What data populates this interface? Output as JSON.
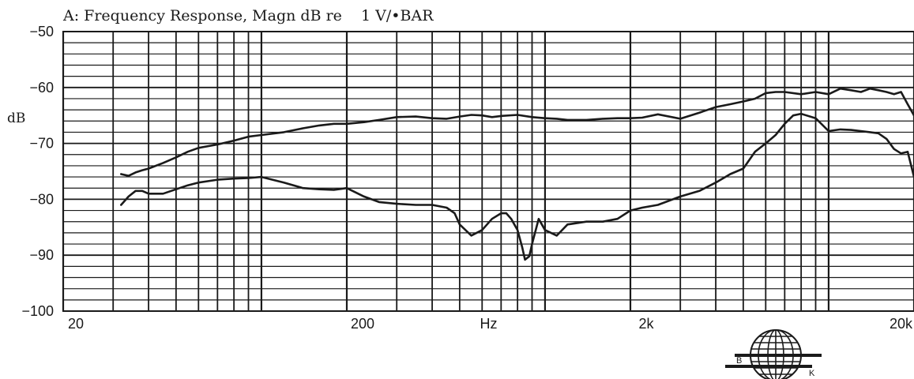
{
  "chart_data": {
    "type": "line",
    "title": "A: Frequency Response, Magn dB re    1 V/•BAR",
    "xlabel": "Hz",
    "ylabel": "dB",
    "xscale": "log",
    "xlim": [
      20,
      20000
    ],
    "ylim": [
      -100,
      -50
    ],
    "x_ticks": [
      20,
      200,
      2000,
      20000
    ],
    "x_tick_labels": [
      "20",
      "200",
      "2k",
      "20k"
    ],
    "y_ticks": [
      -50,
      -60,
      -70,
      -80,
      -90,
      -100
    ],
    "y_tick_labels": [
      "−50",
      "−60",
      "−70",
      "−80",
      "−90",
      "−100"
    ],
    "grid": true,
    "line_color": "#1a1a1a",
    "series": [
      {
        "x": [
          32,
          34,
          36,
          38,
          40,
          45,
          50,
          55,
          60,
          70,
          80,
          90,
          100,
          120,
          140,
          160,
          180,
          200,
          230,
          260,
          300,
          350,
          400,
          450,
          500,
          550,
          600,
          650,
          700,
          800,
          900,
          1000,
          1100,
          1200,
          1400,
          1600,
          1800,
          2000,
          2200,
          2500,
          3000,
          3500,
          4000,
          4500,
          5000,
          5500,
          6000,
          6500,
          7000,
          8000,
          9000,
          10000,
          11000,
          12000,
          13000,
          14000,
          15000,
          16000,
          17000,
          18000,
          19000,
          20000
        ],
        "y": [
          -75.5,
          -75.8,
          -75.2,
          -74.8,
          -74.5,
          -73.5,
          -72.5,
          -71.5,
          -70.8,
          -70.2,
          -69.5,
          -68.8,
          -68.5,
          -68,
          -67.3,
          -66.8,
          -66.5,
          -66.5,
          -66.2,
          -65.8,
          -65.3,
          -65.2,
          -65.5,
          -65.6,
          -65.2,
          -64.9,
          -65,
          -65.3,
          -65.1,
          -64.9,
          -65.3,
          -65.5,
          -65.6,
          -65.8,
          -65.8,
          -65.6,
          -65.5,
          -65.5,
          -65.4,
          -64.8,
          -65.6,
          -64.5,
          -63.5,
          -63,
          -62.5,
          -62,
          -61,
          -60.8,
          -60.8,
          -61.2,
          -60.8,
          -61.2,
          -60.2,
          -60.5,
          -60.8,
          -60.2,
          -60.5,
          -60.8,
          -61.2,
          -60.8,
          -63,
          -65
        ]
      },
      {
        "x": [
          32,
          34,
          36,
          38,
          40,
          45,
          50,
          55,
          60,
          70,
          80,
          90,
          100,
          120,
          140,
          160,
          180,
          200,
          230,
          260,
          300,
          350,
          400,
          450,
          480,
          500,
          550,
          600,
          650,
          700,
          730,
          760,
          800,
          830,
          850,
          880,
          900,
          950,
          1000,
          1100,
          1200,
          1400,
          1600,
          1800,
          2000,
          2200,
          2500,
          3000,
          3500,
          4000,
          4500,
          5000,
          5500,
          6000,
          6500,
          7000,
          7500,
          8000,
          9000,
          10000,
          11000,
          12000,
          13000,
          14000,
          15000,
          16000,
          17000,
          18000,
          19000,
          20000
        ],
        "y": [
          -81,
          -79.5,
          -78.5,
          -78.5,
          -79,
          -79,
          -78.2,
          -77.5,
          -77,
          -76.5,
          -76.3,
          -76.2,
          -76,
          -77,
          -78,
          -78.2,
          -78.3,
          -78,
          -79.5,
          -80.5,
          -80.8,
          -81,
          -81,
          -81.5,
          -82.5,
          -84.5,
          -86.5,
          -85.5,
          -83.5,
          -82.5,
          -82.5,
          -83.5,
          -85.5,
          -88.5,
          -90.8,
          -90.2,
          -88,
          -83.5,
          -85.5,
          -86.5,
          -84.5,
          -84,
          -84,
          -83.5,
          -82,
          -81.5,
          -81,
          -79.5,
          -78.5,
          -77,
          -75.5,
          -74.5,
          -71.5,
          -70,
          -68.5,
          -66.5,
          -65,
          -64.7,
          -65.5,
          -67.8,
          -67.5,
          -67.6,
          -67.8,
          -68,
          -68.2,
          -69.2,
          -71,
          -71.8,
          -71.5,
          -76
        ]
      }
    ]
  },
  "logo": {
    "letter_left": "B",
    "letter_right": "K"
  }
}
